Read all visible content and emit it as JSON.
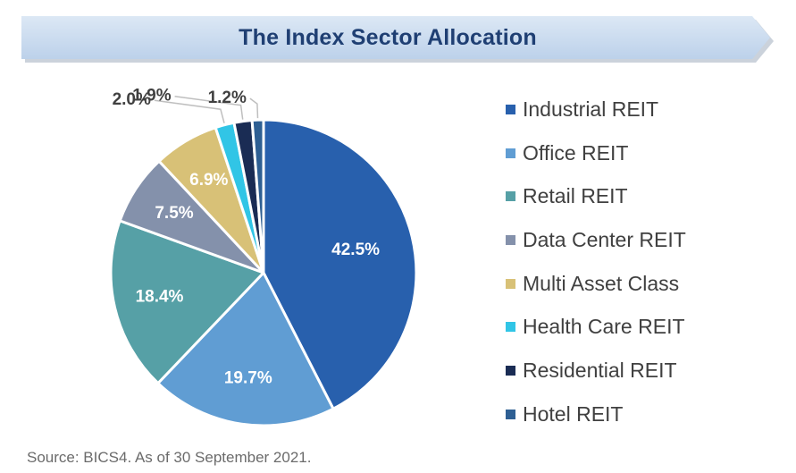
{
  "chart_data": {
    "type": "pie",
    "title": "The Index Sector Allocation",
    "categories": [
      "Industrial REIT",
      "Office REIT",
      "Retail REIT",
      "Data Center REIT",
      "Multi Asset Class",
      "Health Care REIT",
      "Residential REIT",
      "Hotel REIT"
    ],
    "values": [
      42.5,
      19.7,
      18.4,
      7.5,
      6.9,
      2.0,
      1.9,
      1.2
    ],
    "value_labels": [
      "42.5%",
      "19.7%",
      "18.4%",
      "7.5%",
      "6.9%",
      "2.0%",
      "1.9%",
      "1.2%"
    ],
    "colors": [
      "#2860ad",
      "#609dd3",
      "#56a0a6",
      "#8491ab",
      "#d8c177",
      "#31c5e6",
      "#1a2c54",
      "#2e5f93"
    ],
    "legend_position": "right",
    "source": "Source: BICS4. As of 30 September 2021."
  }
}
